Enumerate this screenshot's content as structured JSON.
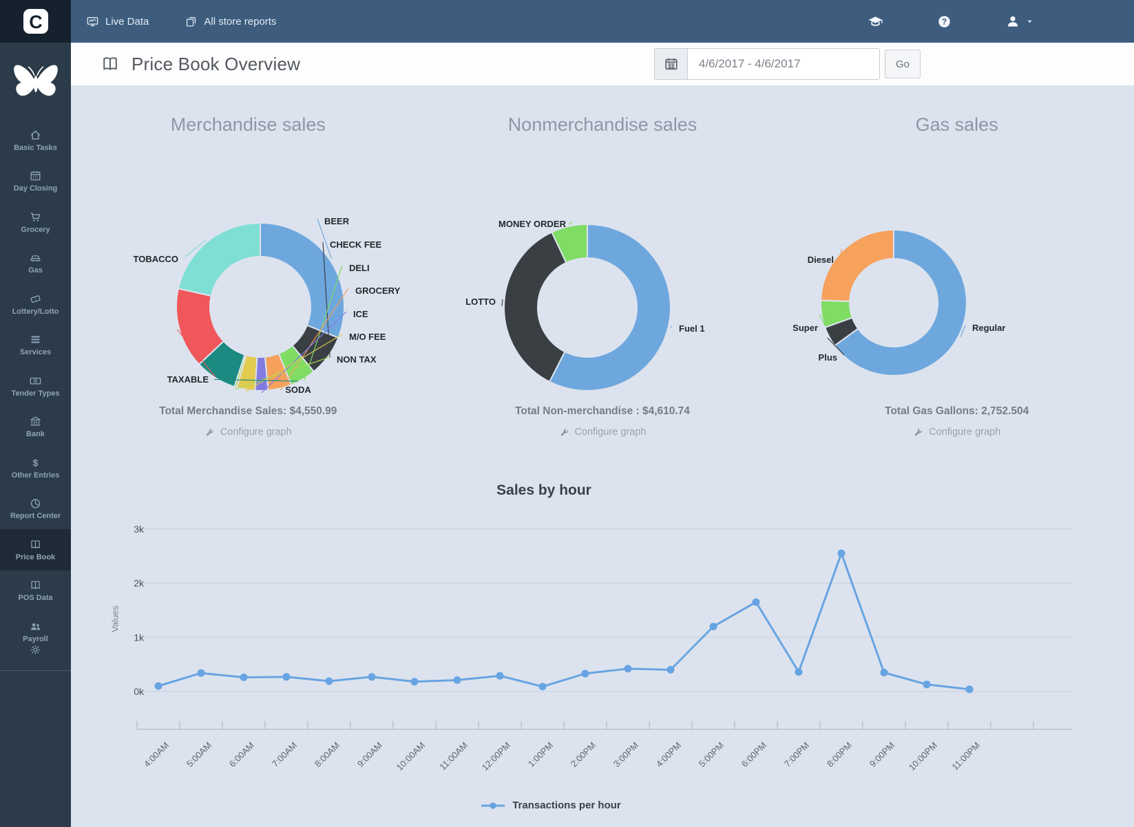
{
  "topbar": {
    "live_data": "Live Data",
    "all_store_reports": "All store reports"
  },
  "header": {
    "title": "Price Book Overview",
    "date_range": "4/6/2017 - 4/6/2017",
    "go_label": "Go"
  },
  "sidebar": {
    "items": [
      {
        "label": "Basic Tasks",
        "icon": "home",
        "active": false
      },
      {
        "label": "Day Closing",
        "icon": "calendar",
        "active": false
      },
      {
        "label": "Grocery",
        "icon": "cart",
        "active": false
      },
      {
        "label": "Gas",
        "icon": "car",
        "active": false
      },
      {
        "label": "Lottery/Lotto",
        "icon": "ticket",
        "active": false
      },
      {
        "label": "Services",
        "icon": "list",
        "active": false
      },
      {
        "label": "Tender Types",
        "icon": "banknote",
        "active": false
      },
      {
        "label": "Bank",
        "icon": "bank",
        "active": false
      },
      {
        "label": "Other Entries",
        "icon": "dollar",
        "active": false
      },
      {
        "label": "Report Center",
        "icon": "pie",
        "active": false
      },
      {
        "label": "Price Book",
        "icon": "book",
        "active": true
      },
      {
        "label": "POS Data",
        "icon": "book",
        "active": false
      },
      {
        "label": "Payroll",
        "icon": "users",
        "active": false
      }
    ]
  },
  "ui": {
    "configure_label": "Configure graph"
  },
  "chart_data": [
    {
      "type": "pie",
      "title": "Merchandise sales",
      "total": "Total Merchandise Sales: $4,550.99",
      "labels": [
        "BEER",
        "CHECK FEE",
        "DELI",
        "GROCERY",
        "ICE",
        "M/O FEE",
        "NON TAX",
        "SODA",
        "TAXABLE",
        "TOBACCO"
      ],
      "values": [
        31,
        8,
        5,
        4.5,
        2.5,
        3.5,
        0.5,
        8,
        15.5,
        21.5
      ],
      "colors": [
        "#6ea7de",
        "#3a3f44",
        "#7fdc64",
        "#f6a15c",
        "#837ce0",
        "#e2cb4f",
        "#aadc50",
        "#1b8a80",
        "#f0575b",
        "#7fdfd4"
      ]
    },
    {
      "type": "pie",
      "title": "Nonmerchandise sales",
      "total": "Total Non-merchandise : $4,610.74",
      "labels": [
        "Fuel 1",
        "LOTTO",
        "MONEY ORDER"
      ],
      "values": [
        57.5,
        35.5,
        7
      ],
      "colors": [
        "#6ea7de",
        "#3a3f44",
        "#7fdc64"
      ]
    },
    {
      "type": "pie",
      "title": "Gas sales",
      "total": "Total Gas Gallons: 2,752.504",
      "labels": [
        "Regular",
        "Plus",
        "Super",
        "Diesel"
      ],
      "values": [
        65,
        4.5,
        6,
        24.5
      ],
      "colors": [
        "#6ea7de",
        "#3a3f44",
        "#7fdc64",
        "#f6a15c"
      ]
    },
    {
      "type": "line",
      "title": "Sales by hour",
      "ylabel": "Values",
      "yticks": [
        "0k",
        "1k",
        "2k",
        "3k"
      ],
      "ylim": [
        0,
        3000
      ],
      "legend": "Transactions per hour",
      "line_color": "#68a4e2",
      "grid_color": "#c9cfd9",
      "x": [
        "4:00AM",
        "5:00AM",
        "6:00AM",
        "7:00AM",
        "8:00AM",
        "9:00AM",
        "10:00AM",
        "11:00AM",
        "12:00PM",
        "1:00PM",
        "2:00PM",
        "3:00PM",
        "4:00PM",
        "5:00PM",
        "6:00PM",
        "7:00PM",
        "8:00PM",
        "9:00PM",
        "10:00PM",
        "11:00PM"
      ],
      "values": [
        100,
        340,
        260,
        270,
        190,
        270,
        180,
        210,
        290,
        90,
        330,
        420,
        400,
        1200,
        1650,
        360,
        2550,
        350,
        130,
        40
      ]
    }
  ]
}
